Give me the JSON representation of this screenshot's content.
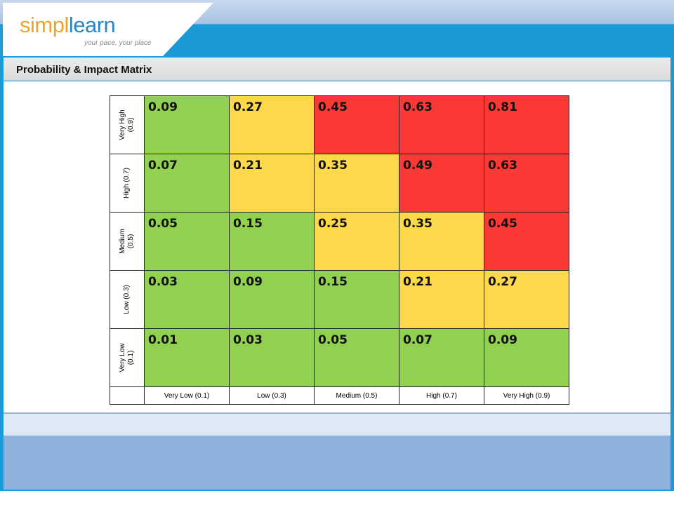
{
  "header": {
    "logo_part1": "simpl",
    "logo_part2": "learn",
    "tagline": "your pace, your place"
  },
  "title": "Probability & Impact Matrix",
  "colors": {
    "green": "#92d050",
    "yellow": "#fcd94a",
    "red": "#fb3a36",
    "accent": "#1a9ad6"
  },
  "matrix": {
    "rows": [
      {
        "label": "Very High\n(0.9)",
        "values": [
          "0.09",
          "0.27",
          "0.45",
          "0.63",
          "0.81"
        ],
        "levels": [
          "green",
          "yellow",
          "red",
          "red",
          "red"
        ]
      },
      {
        "label": "High (0.7)",
        "values": [
          "0.07",
          "0.21",
          "0.35",
          "0.49",
          "0.63"
        ],
        "levels": [
          "green",
          "yellow",
          "yellow",
          "red",
          "red"
        ]
      },
      {
        "label": "Medium\n(0.5)",
        "values": [
          "0.05",
          "0.15",
          "0.25",
          "0.35",
          "0.45"
        ],
        "levels": [
          "green",
          "green",
          "yellow",
          "yellow",
          "red"
        ]
      },
      {
        "label": "Low (0.3)",
        "values": [
          "0.03",
          "0.09",
          "0.15",
          "0.21",
          "0.27"
        ],
        "levels": [
          "green",
          "green",
          "green",
          "yellow",
          "yellow"
        ]
      },
      {
        "label": "Very Low\n(0.1)",
        "values": [
          "0.01",
          "0.03",
          "0.05",
          "0.07",
          "0.09"
        ],
        "levels": [
          "green",
          "green",
          "green",
          "green",
          "green"
        ]
      }
    ],
    "columns": [
      "Very Low (0.1)",
      "Low (0.3)",
      "Medium (0.5)",
      "High (0.7)",
      "Very High (0.9)"
    ]
  }
}
